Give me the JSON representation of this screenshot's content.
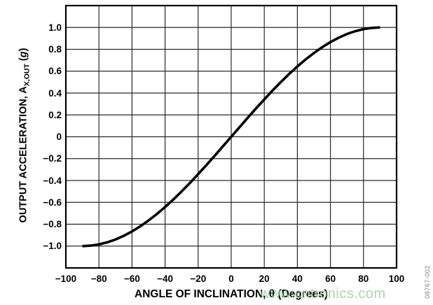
{
  "figure": {
    "watermark_text": "www.cntronics.com",
    "watermark_color": "#9fd49f",
    "figure_number": "08767-002",
    "figure_number_color": "#7f7f7f",
    "background_color": "#ffffff",
    "curve_color": "#000000",
    "grid_color": "#2a2a2a",
    "border_color": "#000000"
  },
  "chart_data": {
    "type": "line",
    "title": "",
    "xlabel": "ANGLE OF INCLINATION, θ (Degrees)",
    "ylabel": "OUTPUT ACCELERATION, AX,OUT (g)",
    "ylabel_parts": {
      "prefix": "OUTPUT ACCELERATION, A",
      "subscript": "X,OUT",
      "open": " (",
      "unit": "g",
      "close": ")"
    },
    "xlim": [
      -100,
      100
    ],
    "ylim": [
      -1.2,
      1.2
    ],
    "x_gridline_step": 20,
    "y_gridline_step": 0.2,
    "grid": true,
    "legend_position": "none",
    "x_tick_values": [
      -100,
      -80,
      -60,
      -40,
      -20,
      0,
      20,
      40,
      60,
      80,
      100
    ],
    "x_tick_labels": [
      "−100",
      "−80",
      "−60",
      "−40",
      "−20",
      "0",
      "20",
      "40",
      "60",
      "80",
      "100"
    ],
    "y_tick_values": [
      -1.0,
      -0.8,
      -0.6,
      -0.4,
      -0.2,
      0,
      0.2,
      0.4,
      0.6,
      0.8,
      1.0
    ],
    "y_tick_labels": [
      "−1.0",
      "−0.8",
      "−0.6",
      "−0.4",
      "−0.2",
      "0",
      "0.2",
      "0.4",
      "0.6",
      "0.8",
      "1.0"
    ],
    "series": [
      {
        "name": "output-acceleration-vs-angle",
        "color": "#000000",
        "x": [
          -90,
          -85,
          -80,
          -75,
          -70,
          -65,
          -60,
          -55,
          -50,
          -45,
          -40,
          -35,
          -30,
          -25,
          -20,
          -15,
          -10,
          -5,
          0,
          5,
          10,
          15,
          20,
          25,
          30,
          35,
          40,
          45,
          50,
          55,
          60,
          65,
          70,
          75,
          80,
          85,
          90
        ],
        "y": [
          -1.0,
          -0.996,
          -0.985,
          -0.966,
          -0.94,
          -0.906,
          -0.866,
          -0.819,
          -0.766,
          -0.707,
          -0.643,
          -0.574,
          -0.5,
          -0.423,
          -0.342,
          -0.259,
          -0.174,
          -0.087,
          0,
          0.087,
          0.174,
          0.259,
          0.342,
          0.423,
          0.5,
          0.574,
          0.643,
          0.707,
          0.766,
          0.819,
          0.866,
          0.906,
          0.94,
          0.966,
          0.985,
          0.996,
          1.0
        ]
      }
    ]
  }
}
